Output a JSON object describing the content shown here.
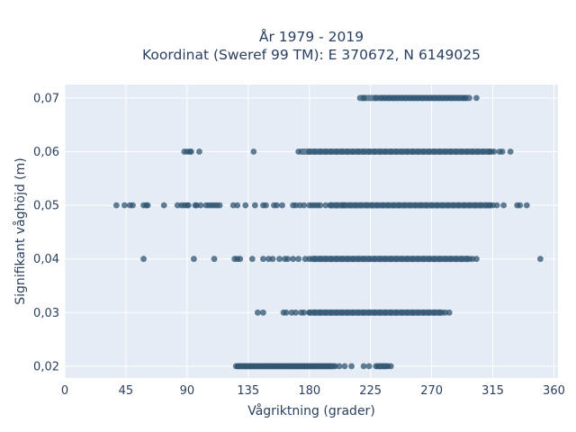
{
  "chart_data": {
    "type": "scatter",
    "title_line1": "År 1979 - 2019",
    "title_line2": "Koordinat (Sweref 99 TM): E 370672, N 6149025",
    "xlabel": "Vågriktning (grader)",
    "ylabel": "Signifikant våghöjd (m)",
    "xlim": [
      0,
      363
    ],
    "ylim": [
      0.0178,
      0.0725
    ],
    "x_ticks": [
      0,
      45,
      90,
      135,
      180,
      225,
      270,
      315,
      360
    ],
    "y_ticks": [
      0.02,
      0.03,
      0.04,
      0.05,
      0.06,
      0.07
    ],
    "y_tick_labels": [
      "0,02",
      "0,03",
      "0,04",
      "0,05",
      "0,06",
      "0,07"
    ],
    "grid": true,
    "colors": {
      "plot_bg": "#e5ecf6",
      "grid": "#ffffff",
      "marker": "#2f5470"
    },
    "rows": [
      {
        "y": 0.07,
        "points": [
          220,
          229,
          233,
          236,
          239,
          242,
          245,
          248,
          251,
          254,
          257,
          260,
          263,
          266,
          269,
          272,
          275,
          278,
          281,
          284,
          287,
          290,
          293,
          295,
          303
        ],
        "bands": [
          [
            215,
            300
          ]
        ]
      },
      {
        "y": 0.06,
        "points": [
          88,
          90,
          92,
          93,
          99,
          139,
          172,
          180,
          184,
          188,
          192,
          196,
          200,
          204,
          208,
          212,
          216,
          220,
          224,
          228,
          232,
          236,
          240,
          244,
          248,
          252,
          256,
          260,
          264,
          268,
          272,
          276,
          280,
          284,
          288,
          292,
          296,
          300,
          304,
          308,
          312,
          314,
          316,
          320,
          322,
          328
        ],
        "bands": [
          [
            172,
            315
          ]
        ]
      },
      {
        "y": 0.05,
        "points": [
          38,
          44,
          48,
          50,
          58,
          60,
          61,
          73,
          83,
          86,
          88,
          90,
          91,
          96,
          97,
          100,
          104,
          106,
          108,
          110,
          112,
          114,
          124,
          127,
          133,
          140,
          146,
          148,
          154,
          156,
          160,
          168,
          170,
          173,
          176,
          180,
          182,
          184,
          186,
          188,
          192,
          196,
          200,
          204,
          206,
          210,
          214,
          218,
          222,
          226,
          230,
          234,
          238,
          242,
          246,
          250,
          254,
          258,
          262,
          266,
          270,
          274,
          278,
          282,
          286,
          290,
          294,
          298,
          302,
          306,
          310,
          313,
          315,
          318,
          323,
          333,
          335,
          340
        ],
        "bands": [
          [
            193,
            315
          ]
        ]
      },
      {
        "y": 0.04,
        "points": [
          58,
          95,
          110,
          125,
          127,
          129,
          138,
          146,
          150,
          153,
          158,
          162,
          164,
          168,
          172,
          177,
          180,
          184,
          188,
          192,
          196,
          200,
          204,
          208,
          212,
          216,
          220,
          224,
          228,
          232,
          236,
          240,
          244,
          248,
          252,
          256,
          260,
          264,
          268,
          272,
          276,
          280,
          284,
          288,
          292,
          296,
          300,
          303,
          350
        ],
        "bands": [
          [
            180,
            300
          ]
        ]
      },
      {
        "y": 0.03,
        "points": [
          142,
          146,
          161,
          163,
          167,
          170,
          174,
          176,
          180,
          184,
          188,
          192,
          196,
          200,
          204,
          208,
          212,
          216,
          220,
          224,
          228,
          232,
          236,
          240,
          244,
          248,
          252,
          256,
          260,
          264,
          268,
          272,
          276,
          280,
          283
        ],
        "bands": [
          [
            178,
            280
          ]
        ]
      },
      {
        "y": 0.02,
        "points": [
          126,
          128,
          130,
          132,
          134,
          136,
          138,
          140,
          142,
          144,
          146,
          148,
          150,
          152,
          154,
          156,
          158,
          160,
          162,
          164,
          166,
          168,
          170,
          172,
          174,
          176,
          178,
          180,
          182,
          184,
          186,
          188,
          190,
          192,
          194,
          196,
          199,
          202,
          206,
          211,
          220,
          224,
          229,
          232,
          235,
          238,
          240
        ],
        "bands": [
          [
            125,
            200
          ],
          [
            228,
            239
          ]
        ]
      }
    ]
  }
}
